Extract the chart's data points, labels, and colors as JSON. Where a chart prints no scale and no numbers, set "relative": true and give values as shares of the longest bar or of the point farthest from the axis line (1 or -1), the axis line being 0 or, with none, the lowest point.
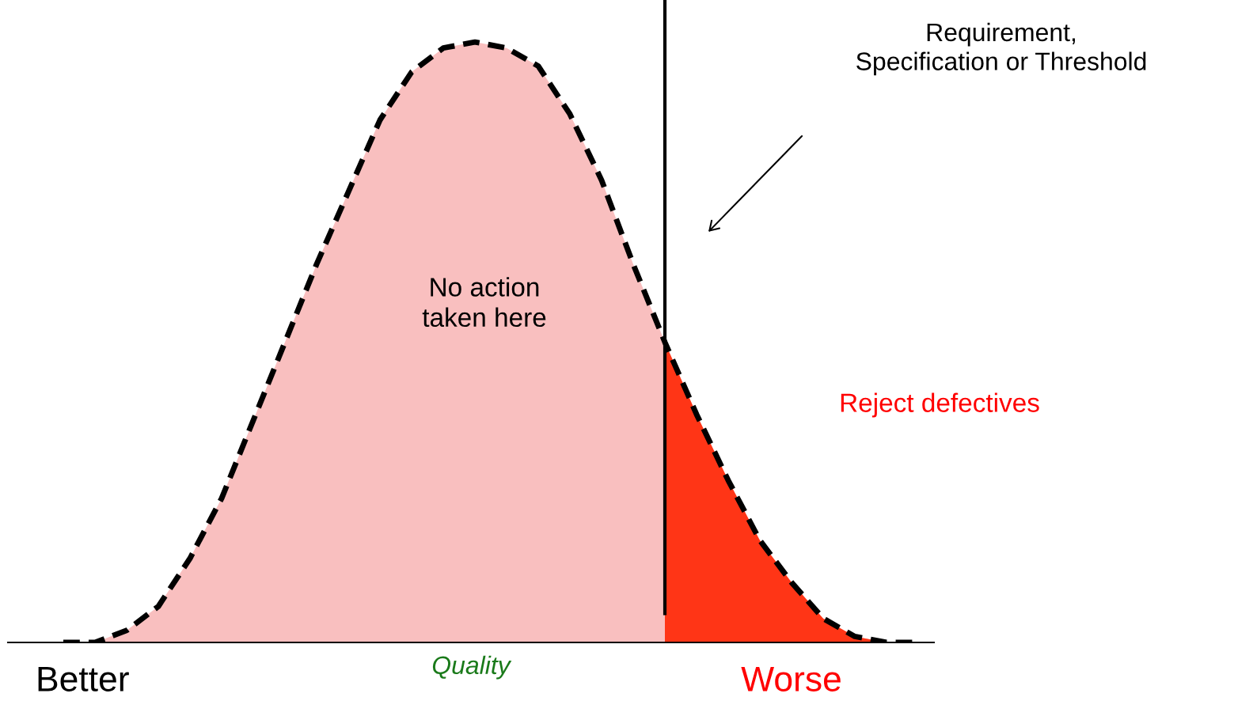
{
  "chart_data": {
    "type": "area",
    "relative": true,
    "xlabel": "Quality",
    "categories": [
      null,
      null,
      null,
      null,
      null,
      null,
      null,
      null,
      null,
      null,
      null,
      null,
      null,
      null,
      null,
      null,
      null,
      null,
      null,
      null,
      null,
      null,
      null,
      null,
      null,
      null,
      null,
      null
    ],
    "series": [
      {
        "color": "#f9bfbf",
        "line_style": "dashed",
        "values": [
          0,
          0,
          0.02,
          0.06,
          0.14,
          0.24,
          0.37,
          0.5,
          0.63,
          0.75,
          0.87,
          0.95,
          0.99,
          1.0,
          0.99,
          0.96,
          0.88,
          0.77,
          0.63,
          0.5,
          0.38,
          0.27,
          0.17,
          0.1,
          0.04,
          0.01,
          0,
          0
        ]
      },
      {
        "color": "#ff3516",
        "values": [
          null,
          null,
          null,
          null,
          null,
          null,
          null,
          null,
          null,
          null,
          null,
          null,
          null,
          null,
          null,
          null,
          null,
          null,
          null,
          0.5,
          0.38,
          0.27,
          0.17,
          0.1,
          0.04,
          0.01,
          0,
          0
        ]
      }
    ],
    "annotations": [
      "No action\ntaken here",
      "Reject defectives",
      "Better",
      "Worse",
      "Requirement,\nSpecification or Threshold"
    ],
    "legend": false
  }
}
